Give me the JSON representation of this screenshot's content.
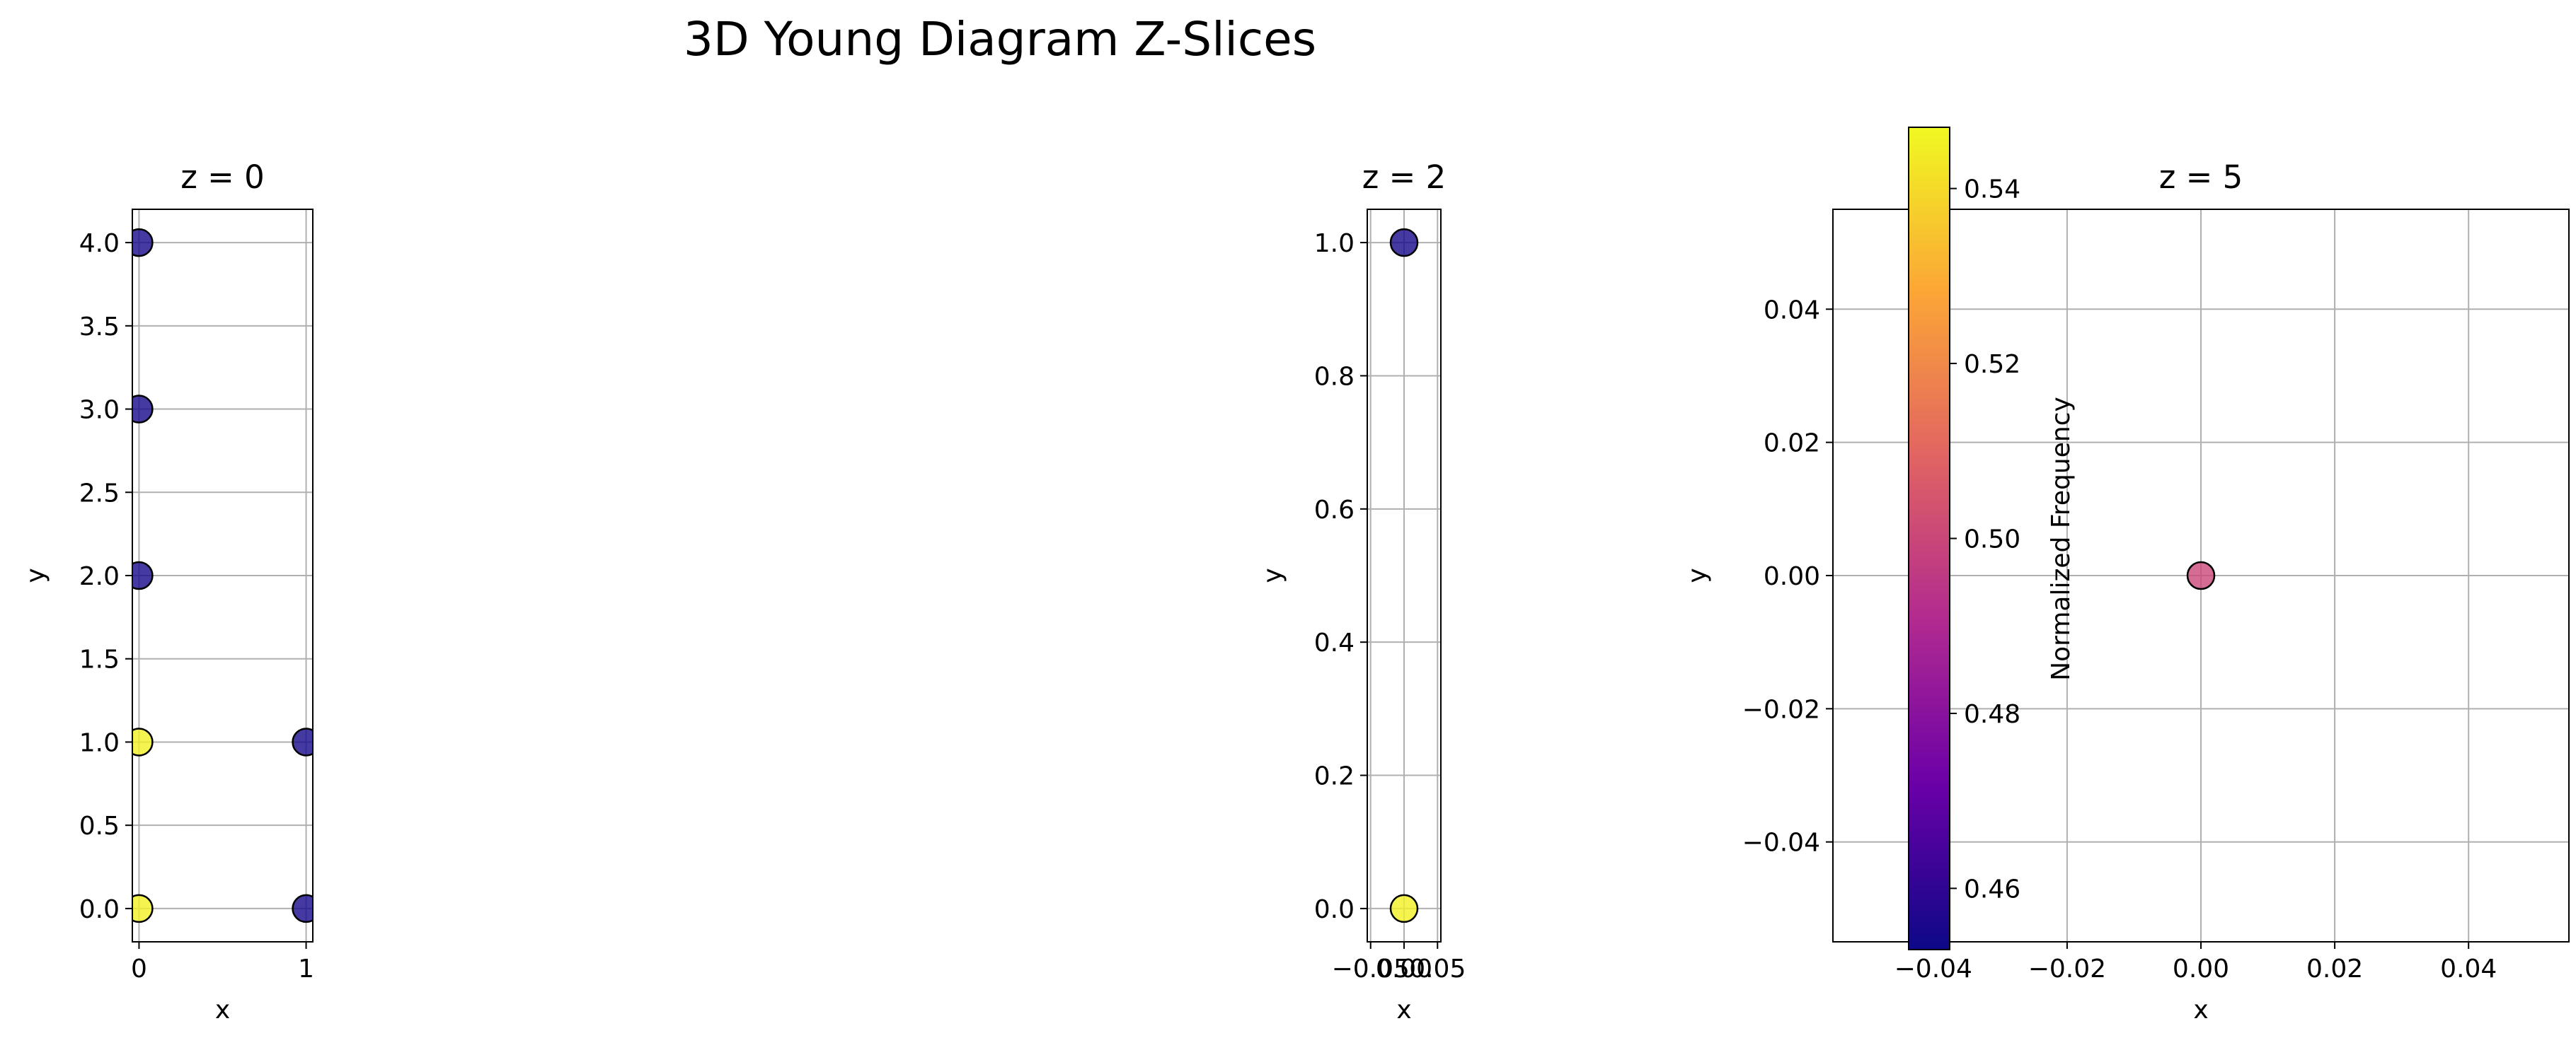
{
  "chart_data": {
    "title": "3D Young Diagram Z-Slices",
    "type": "scatter",
    "colormap": [
      "#0d0887",
      "#6a00a8",
      "#b12a90",
      "#e16462",
      "#fca636",
      "#f0f921"
    ],
    "colorbar": {
      "label": "Normalized Frequency",
      "range": [
        0.453,
        0.547
      ],
      "ticks": [
        "0.46",
        "0.48",
        "0.50",
        "0.52",
        "0.54"
      ],
      "tick_values": [
        0.46,
        0.48,
        0.5,
        0.52,
        0.54
      ]
    },
    "panels": [
      {
        "title": "z = 0",
        "xlabel": "x",
        "ylabel": "y",
        "xlim": [
          -0.04,
          1.04
        ],
        "ylim": [
          -0.2,
          4.2
        ],
        "grid": true,
        "xticks": [
          0,
          1
        ],
        "xtick_labels": [
          "0",
          "1"
        ],
        "yticks": [
          0.0,
          0.5,
          1.0,
          1.5,
          2.0,
          2.5,
          3.0,
          3.5,
          4.0
        ],
        "ytick_labels": [
          "0.0",
          "0.5",
          "1.0",
          "1.5",
          "2.0",
          "2.5",
          "3.0",
          "3.5",
          "4.0"
        ],
        "points": [
          {
            "x": 0,
            "y": 4,
            "value": 0.455
          },
          {
            "x": 0,
            "y": 3,
            "value": 0.455
          },
          {
            "x": 0,
            "y": 2,
            "value": 0.455
          },
          {
            "x": 0,
            "y": 1,
            "value": 0.545
          },
          {
            "x": 0,
            "y": 0,
            "value": 0.545
          },
          {
            "x": 1,
            "y": 1,
            "value": 0.455
          },
          {
            "x": 1,
            "y": 0,
            "value": 0.455
          }
        ]
      },
      {
        "title": "z = 2",
        "xlabel": "x",
        "ylabel": "y",
        "xlim": [
          -0.055,
          0.055
        ],
        "ylim": [
          -0.05,
          1.05
        ],
        "grid": true,
        "xticks": [
          -0.05,
          0.0,
          0.05
        ],
        "xtick_labels": [
          "−0.05",
          "0.00",
          "0.05"
        ],
        "yticks": [
          0.0,
          0.2,
          0.4,
          0.6,
          0.8,
          1.0
        ],
        "ytick_labels": [
          "0.0",
          "0.2",
          "0.4",
          "0.6",
          "0.8",
          "1.0"
        ],
        "points": [
          {
            "x": 0,
            "y": 1,
            "value": 0.455
          },
          {
            "x": 0,
            "y": 0,
            "value": 0.545
          }
        ]
      },
      {
        "title": "z = 5",
        "xlabel": "x",
        "ylabel": "y",
        "xlim": [
          -0.055,
          0.055
        ],
        "ylim": [
          -0.055,
          0.055
        ],
        "grid": true,
        "xticks": [
          -0.04,
          -0.02,
          0.0,
          0.02,
          0.04
        ],
        "xtick_labels": [
          "−0.04",
          "−0.02",
          "0.00",
          "0.02",
          "0.04"
        ],
        "yticks": [
          -0.04,
          -0.02,
          0.0,
          0.02,
          0.04
        ],
        "ytick_labels": [
          "−0.04",
          "−0.02",
          "0.00",
          "0.02",
          "0.04"
        ],
        "points": [
          {
            "x": 0,
            "y": 0,
            "value": 0.5
          }
        ]
      }
    ]
  }
}
